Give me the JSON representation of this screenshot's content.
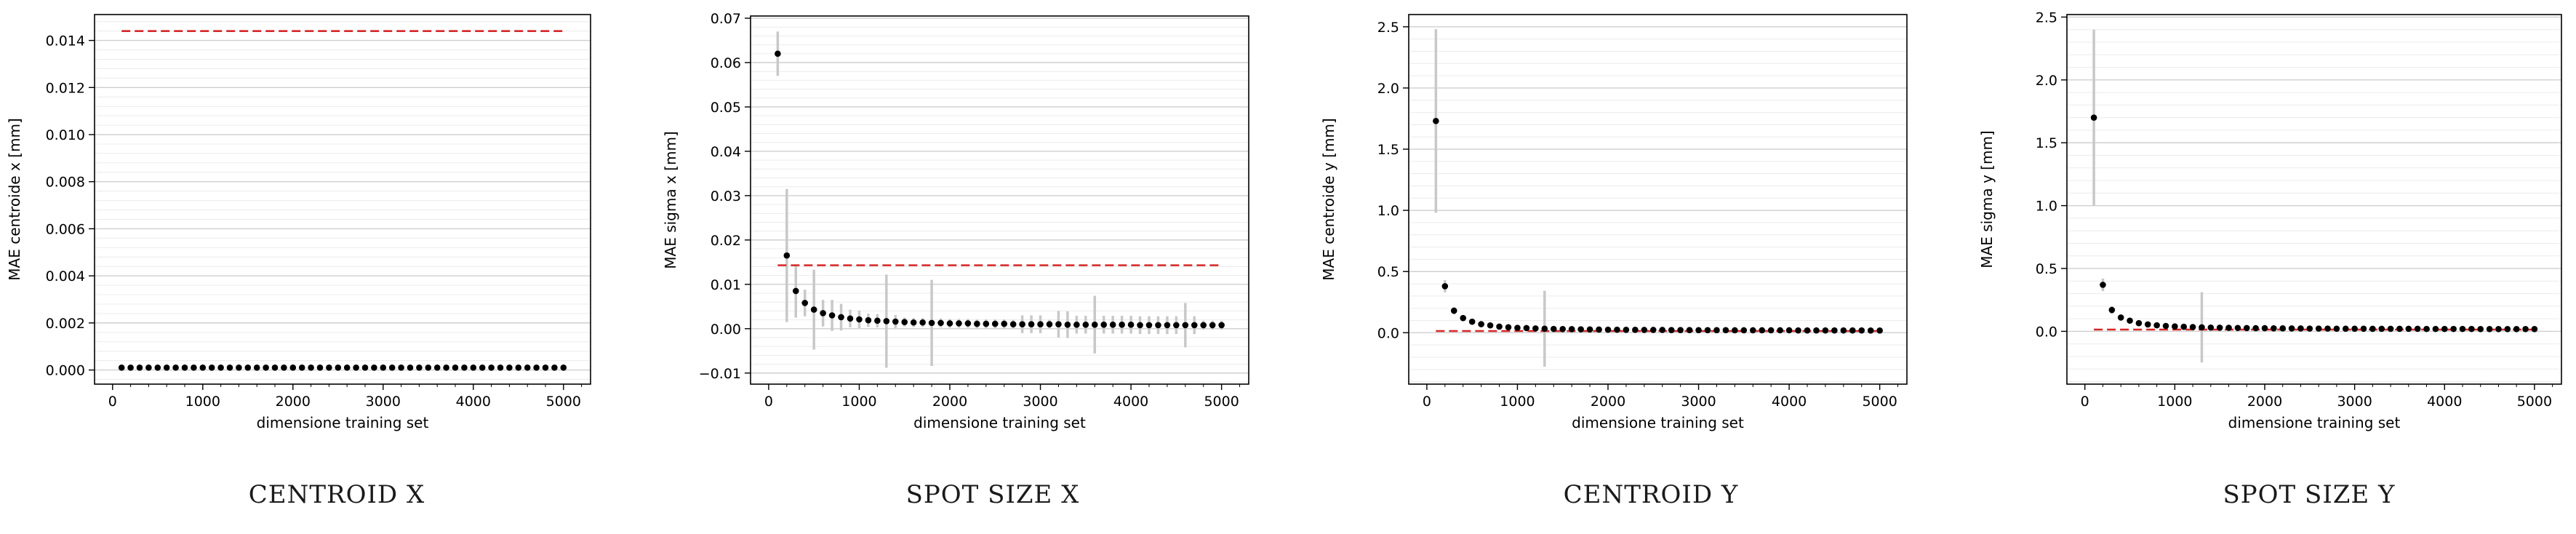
{
  "chart_data": [
    {
      "type": "scatter",
      "title": "",
      "caption": "CENTROID X",
      "xlabel": "dimensione training set",
      "ylabel": "MAE centroide x [mm]",
      "xlim": [
        -200,
        5300
      ],
      "ylim": [
        -0.0006,
        0.0151
      ],
      "xticks": [
        0,
        1000,
        2000,
        3000,
        4000,
        5000
      ],
      "xtick_labels": [
        "0",
        "1000",
        "2000",
        "3000",
        "4000",
        "5000"
      ],
      "yticks": [
        0,
        0.002,
        0.004,
        0.006,
        0.008,
        0.01,
        0.012,
        0.014
      ],
      "ytick_labels": [
        "0.000",
        "0.002",
        "0.004",
        "0.006",
        "0.008",
        "0.010",
        "0.012",
        "0.014"
      ],
      "grid": true,
      "x": [
        100,
        200,
        300,
        400,
        500,
        600,
        700,
        800,
        900,
        1000,
        1100,
        1200,
        1300,
        1400,
        1500,
        1600,
        1700,
        1800,
        1900,
        2000,
        2100,
        2200,
        2300,
        2400,
        2500,
        2600,
        2700,
        2800,
        2900,
        3000,
        3100,
        3200,
        3300,
        3400,
        3500,
        3600,
        3700,
        3800,
        3900,
        4000,
        4100,
        4200,
        4300,
        4400,
        4500,
        4600,
        4700,
        4800,
        4900,
        5000
      ],
      "y": [
        0.0001,
        0.0001,
        0.0001,
        0.0001,
        0.0001,
        0.0001,
        0.0001,
        0.0001,
        0.0001,
        0.0001,
        0.0001,
        0.0001,
        0.0001,
        0.0001,
        0.0001,
        0.0001,
        0.0001,
        0.0001,
        0.0001,
        0.0001,
        0.0001,
        0.0001,
        0.0001,
        0.0001,
        0.0001,
        0.0001,
        0.0001,
        0.0001,
        0.0001,
        0.0001,
        0.0001,
        0.0001,
        0.0001,
        0.0001,
        0.0001,
        0.0001,
        0.0001,
        0.0001,
        0.0001,
        0.0001,
        0.0001,
        0.0001,
        0.0001,
        0.0001,
        0.0001,
        0.0001,
        0.0001,
        0.0001,
        0.0001,
        0.0001
      ],
      "errors": [],
      "reference_line": {
        "y": 0.0144,
        "x_range": [
          100,
          5000
        ],
        "color": "#d62728",
        "style": "dashed"
      },
      "marker_color": "#000000",
      "error_color": "#c8c8c8"
    },
    {
      "type": "scatter",
      "title": "",
      "caption": "SPOT SIZE X",
      "xlabel": "dimensione training set",
      "ylabel": "MAE sigma x [mm]",
      "xlim": [
        -200,
        5300
      ],
      "ylim": [
        -0.0125,
        0.0705
      ],
      "xticks": [
        0,
        1000,
        2000,
        3000,
        4000,
        5000
      ],
      "xtick_labels": [
        "0",
        "1000",
        "2000",
        "3000",
        "4000",
        "5000"
      ],
      "yticks": [
        -0.01,
        0,
        0.01,
        0.02,
        0.03,
        0.04,
        0.05,
        0.06,
        0.07
      ],
      "ytick_labels": [
        "−0.01",
        "0.00",
        "0.01",
        "0.02",
        "0.03",
        "0.04",
        "0.05",
        "0.06",
        "0.07"
      ],
      "grid": true,
      "x": [
        100,
        200,
        300,
        400,
        500,
        600,
        700,
        800,
        900,
        1000,
        1100,
        1200,
        1300,
        1400,
        1500,
        1600,
        1700,
        1800,
        1900,
        2000,
        2100,
        2200,
        2300,
        2400,
        2500,
        2600,
        2700,
        2800,
        2900,
        3000,
        3100,
        3200,
        3300,
        3400,
        3500,
        3600,
        3700,
        3800,
        3900,
        4000,
        4100,
        4200,
        4300,
        4400,
        4500,
        4600,
        4700,
        4800,
        4900,
        5000
      ],
      "y": [
        0.062,
        0.0165,
        0.0085,
        0.0058,
        0.0043,
        0.0035,
        0.003,
        0.0026,
        0.0023,
        0.0021,
        0.0019,
        0.0018,
        0.0017,
        0.0016,
        0.0015,
        0.0014,
        0.0014,
        0.0013,
        0.0013,
        0.0012,
        0.0012,
        0.0012,
        0.0011,
        0.0011,
        0.0011,
        0.0011,
        0.001,
        0.001,
        0.001,
        0.001,
        0.001,
        0.001,
        0.0009,
        0.0009,
        0.0009,
        0.0009,
        0.0009,
        0.0009,
        0.0009,
        0.0009,
        0.0008,
        0.0008,
        0.0008,
        0.0008,
        0.0008,
        0.0008,
        0.0008,
        0.0008,
        0.0008,
        0.0008
      ],
      "errors": [
        0.005,
        0.015,
        0.006,
        0.003,
        0.009,
        0.003,
        0.0035,
        0.003,
        0.002,
        0.002,
        0.0015,
        0.0015,
        0.0105,
        0.0015,
        0.001,
        0.001,
        0.001,
        0.0097,
        0.001,
        0.001,
        0.001,
        0.001,
        0.001,
        0.001,
        0.001,
        0.001,
        0.001,
        0.002,
        0.002,
        0.002,
        0.001,
        0.003,
        0.003,
        0.002,
        0.002,
        0.0065,
        0.002,
        0.002,
        0.002,
        0.002,
        0.002,
        0.002,
        0.002,
        0.002,
        0.002,
        0.005,
        0.002,
        0.001,
        0.001,
        0.001
      ],
      "reference_line": {
        "y": 0.0143,
        "x_range": [
          100,
          5000
        ],
        "color": "#d62728",
        "style": "dashed"
      },
      "marker_color": "#000000",
      "error_color": "#c8c8c8"
    },
    {
      "type": "scatter",
      "title": "",
      "caption": "CENTROID Y",
      "xlabel": "dimensione training set",
      "ylabel": "MAE centroide y [mm]",
      "xlim": [
        -200,
        5300
      ],
      "ylim": [
        -0.42,
        2.6
      ],
      "xticks": [
        0,
        1000,
        2000,
        3000,
        4000,
        5000
      ],
      "xtick_labels": [
        "0",
        "1000",
        "2000",
        "3000",
        "4000",
        "5000"
      ],
      "yticks": [
        0,
        0.5,
        1.0,
        1.5,
        2.0,
        2.5
      ],
      "ytick_labels": [
        "0.0",
        "0.5",
        "1.0",
        "1.5",
        "2.0",
        "2.5"
      ],
      "grid": true,
      "x": [
        100,
        200,
        300,
        400,
        500,
        600,
        700,
        800,
        900,
        1000,
        1100,
        1200,
        1300,
        1400,
        1500,
        1600,
        1700,
        1800,
        1900,
        2000,
        2100,
        2200,
        2300,
        2400,
        2500,
        2600,
        2700,
        2800,
        2900,
        3000,
        3100,
        3200,
        3300,
        3400,
        3500,
        3600,
        3700,
        3800,
        3900,
        4000,
        4100,
        4200,
        4300,
        4400,
        4500,
        4600,
        4700,
        4800,
        4900,
        5000
      ],
      "y": [
        1.73,
        0.38,
        0.18,
        0.12,
        0.09,
        0.07,
        0.06,
        0.05,
        0.045,
        0.04,
        0.038,
        0.035,
        0.033,
        0.031,
        0.03,
        0.029,
        0.028,
        0.027,
        0.026,
        0.025,
        0.025,
        0.024,
        0.024,
        0.023,
        0.023,
        0.023,
        0.022,
        0.022,
        0.022,
        0.021,
        0.021,
        0.021,
        0.021,
        0.02,
        0.02,
        0.02,
        0.02,
        0.02,
        0.02,
        0.02,
        0.019,
        0.019,
        0.019,
        0.019,
        0.019,
        0.019,
        0.019,
        0.019,
        0.018,
        0.018
      ],
      "errors": [
        0.75,
        0.05,
        0.03,
        0.02,
        0.015,
        0.012,
        0.01,
        0.01,
        0.01,
        0.01,
        0.01,
        0.01,
        0.31,
        0.01,
        0.01,
        0.01,
        0.01,
        0.01,
        0.01,
        0.01,
        0.01,
        0.01,
        0.01,
        0.01,
        0.01,
        0.01,
        0.01,
        0.01,
        0.01,
        0.01,
        0.01,
        0.01,
        0.01,
        0.01,
        0.01,
        0.01,
        0.01,
        0.01,
        0.01,
        0.01,
        0.01,
        0.01,
        0.01,
        0.01,
        0.01,
        0.01,
        0.01,
        0.01,
        0.01,
        0.01
      ],
      "reference_line": {
        "y": 0.014,
        "x_range": [
          100,
          5000
        ],
        "color": "#d62728",
        "style": "dashed"
      },
      "marker_color": "#000000",
      "error_color": "#c8c8c8"
    },
    {
      "type": "scatter",
      "title": "",
      "caption": "SPOT SIZE Y",
      "xlabel": "dimensione training set",
      "ylabel": "MAE sigma y [mm]",
      "xlim": [
        -200,
        5300
      ],
      "ylim": [
        -0.42,
        2.52
      ],
      "xticks": [
        0,
        1000,
        2000,
        3000,
        4000,
        5000
      ],
      "xtick_labels": [
        "0",
        "1000",
        "2000",
        "3000",
        "4000",
        "5000"
      ],
      "yticks": [
        0,
        0.5,
        1.0,
        1.5,
        2.0,
        2.5
      ],
      "ytick_labels": [
        "0.0",
        "0.5",
        "1.0",
        "1.5",
        "2.0",
        "2.5"
      ],
      "grid": true,
      "x": [
        100,
        200,
        300,
        400,
        500,
        600,
        700,
        800,
        900,
        1000,
        1100,
        1200,
        1300,
        1400,
        1500,
        1600,
        1700,
        1800,
        1900,
        2000,
        2100,
        2200,
        2300,
        2400,
        2500,
        2600,
        2700,
        2800,
        2900,
        3000,
        3100,
        3200,
        3300,
        3400,
        3500,
        3600,
        3700,
        3800,
        3900,
        4000,
        4100,
        4200,
        4300,
        4400,
        4500,
        4600,
        4700,
        4800,
        4900,
        5000
      ],
      "y": [
        1.7,
        0.37,
        0.17,
        0.11,
        0.085,
        0.065,
        0.055,
        0.048,
        0.043,
        0.039,
        0.036,
        0.034,
        0.032,
        0.03,
        0.029,
        0.028,
        0.027,
        0.026,
        0.025,
        0.025,
        0.024,
        0.024,
        0.023,
        0.023,
        0.022,
        0.022,
        0.022,
        0.021,
        0.021,
        0.021,
        0.021,
        0.02,
        0.02,
        0.02,
        0.02,
        0.02,
        0.02,
        0.019,
        0.019,
        0.019,
        0.019,
        0.019,
        0.019,
        0.018,
        0.018,
        0.018,
        0.018,
        0.018,
        0.018,
        0.018
      ],
      "errors": [
        0.7,
        0.05,
        0.03,
        0.02,
        0.015,
        0.012,
        0.01,
        0.01,
        0.01,
        0.01,
        0.01,
        0.01,
        0.28,
        0.01,
        0.01,
        0.01,
        0.01,
        0.01,
        0.01,
        0.01,
        0.01,
        0.01,
        0.01,
        0.01,
        0.01,
        0.01,
        0.01,
        0.01,
        0.01,
        0.01,
        0.01,
        0.01,
        0.01,
        0.01,
        0.01,
        0.01,
        0.01,
        0.01,
        0.01,
        0.01,
        0.01,
        0.01,
        0.01,
        0.01,
        0.01,
        0.01,
        0.01,
        0.01,
        0.01,
        0.01
      ],
      "reference_line": {
        "y": 0.014,
        "x_range": [
          100,
          5000
        ],
        "color": "#d62728",
        "style": "dashed"
      },
      "marker_color": "#000000",
      "error_color": "#c8c8c8"
    }
  ]
}
